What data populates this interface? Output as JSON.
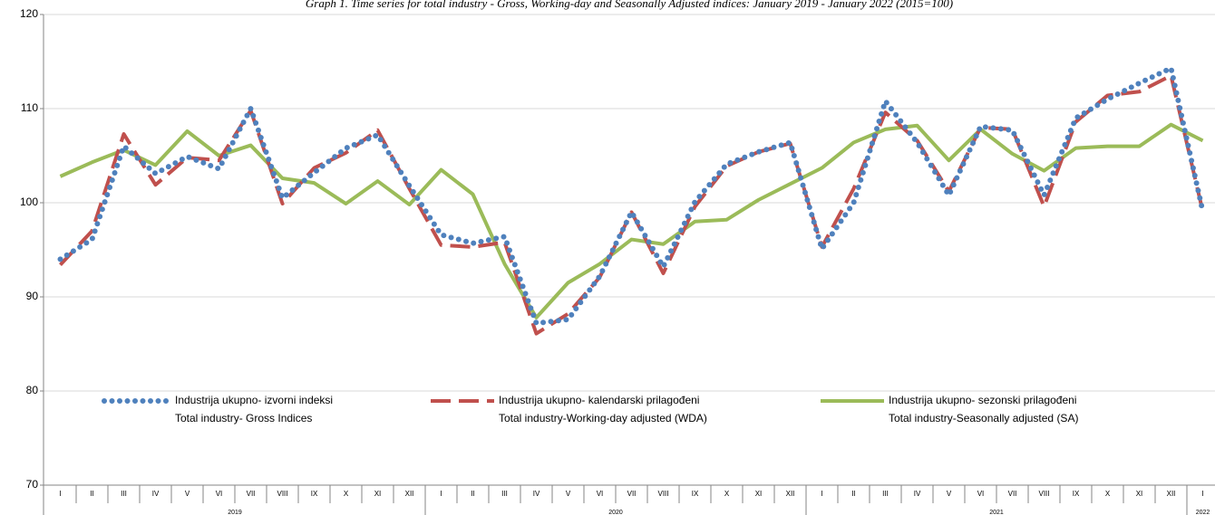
{
  "chart_data": {
    "type": "line",
    "title": "Graph 1. Time series for total industry - Gross, Working-day and Seasonally Adjusted indices: January 2019 - January 2022 (2015=100)",
    "categories": [
      "I",
      "II",
      "III",
      "IV",
      "V",
      "VI",
      "VII",
      "VIII",
      "IX",
      "X",
      "XI",
      "XII",
      "I",
      "II",
      "III",
      "IV",
      "V",
      "VI",
      "VII",
      "VIII",
      "IX",
      "X",
      "XI",
      "XII",
      "I",
      "II",
      "III",
      "IV",
      "V",
      "VI",
      "VII",
      "VIII",
      "IX",
      "X",
      "XI",
      "XII",
      "I"
    ],
    "x_groups": [
      {
        "label": "2019",
        "count": 12
      },
      {
        "label": "2020",
        "count": 12
      },
      {
        "label": "2021",
        "count": 12
      },
      {
        "label": "2022",
        "count": 1
      }
    ],
    "ylim": [
      70,
      120
    ],
    "yticks": [
      70,
      80,
      90,
      100,
      110,
      120
    ],
    "grid": true,
    "series": [
      {
        "name": "Industrija ukupno- izvorni indeksi",
        "name_en": "Total industry- Gross Indices",
        "color": "#4f81bd",
        "style": "dotted",
        "values": [
          94,
          96.1,
          106,
          103.1,
          104.9,
          103.6,
          110,
          100.5,
          103.2,
          105.8,
          107.2,
          101.8,
          96.6,
          95.7,
          96.4,
          87.2,
          87.6,
          92.2,
          99,
          93.2,
          100.1,
          104.1,
          105.4,
          106.4,
          95.1,
          100,
          110.8,
          106.4,
          100.8,
          108.1,
          107.7,
          100.8,
          109,
          111,
          112.7,
          114.3,
          99.1
        ]
      },
      {
        "name": "Industrija ukupno- kalendarski prilagođeni",
        "name_en": "Total industry-Working-day adjusted (WDA)",
        "color": "#c0504d",
        "style": "dashed",
        "values": [
          93.4,
          97,
          107.3,
          101.9,
          104.8,
          104.5,
          109.8,
          99.9,
          103.7,
          105.3,
          107.7,
          101.5,
          95.5,
          95.3,
          95.8,
          86.1,
          88.2,
          92.1,
          99,
          92.5,
          99.6,
          103.9,
          105.4,
          106.3,
          95.3,
          101.5,
          109.6,
          106.6,
          101.2,
          108,
          107.8,
          99.6,
          108.6,
          111.4,
          111.8,
          113.5,
          99.1
        ]
      },
      {
        "name": "Industrija ukupno- sezonski prilagođeni",
        "name_en": "Total industry-Seasonally adjusted (SA)",
        "color": "#9bbb59",
        "style": "solid",
        "values": [
          102.8,
          104.3,
          105.6,
          104,
          107.6,
          105,
          106.1,
          102.6,
          102.1,
          99.9,
          102.3,
          99.8,
          103.5,
          100.9,
          93.5,
          87.8,
          91.5,
          93.5,
          96.1,
          95.6,
          98,
          98.2,
          100.3,
          102,
          103.7,
          106.4,
          107.8,
          108.2,
          104.5,
          107.8,
          105.2,
          103.4,
          105.8,
          106,
          106,
          108.3,
          106.6
        ]
      }
    ]
  }
}
